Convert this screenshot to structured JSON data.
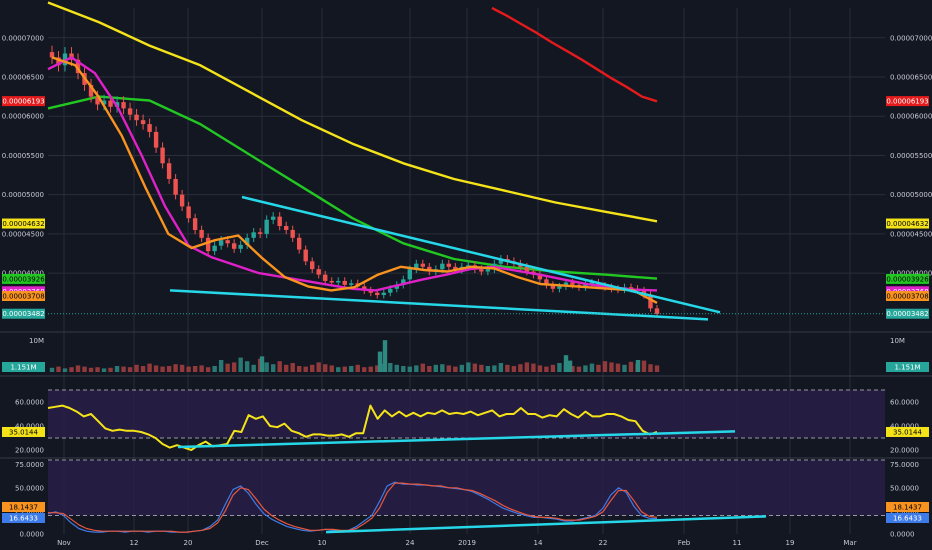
{
  "colors": {
    "background": "#131722",
    "grid": "#2a2e39",
    "candle_up": "#26a69a",
    "candle_down": "#ef5350",
    "ma_red": "#e41a1c",
    "ma_yellow": "#f5e31a",
    "ma_green": "#22c722",
    "ma_magenta": "#e020c8",
    "ma_orange": "#f7931e",
    "trendline": "#26d7e8",
    "rsi_line": "#f5e31a",
    "stoch_k": "#3d7be8",
    "stoch_d": "#e8573d",
    "panel_band": "#2b1e4a"
  },
  "chart_data": [
    {
      "type": "candlestick",
      "x_tick_labels": [
        "Nov",
        "12",
        "20",
        "Dec",
        "10",
        "24",
        "2019",
        "14",
        "22",
        "Feb",
        "11",
        "19",
        "Mar"
      ],
      "y_tick_labels": [
        "0.00007000",
        "0.00006500",
        "0.00006000",
        "0.00005500",
        "0.00005000",
        "0.00004500",
        "0.00004000"
      ],
      "ylim": [
        3.3e-05,
        7.38e-05
      ],
      "last_price": 3.482e-05,
      "price_series": [
        6.75e-05,
        6.65e-05,
        6.8e-05,
        6.72e-05,
        6.55e-05,
        6.4e-05,
        6.25e-05,
        6.15e-05,
        6.2e-05,
        6.12e-05,
        6.18e-05,
        6.1e-05,
        6.02e-05,
        5.95e-05,
        5.9e-05,
        5.8e-05,
        5.6e-05,
        5.4e-05,
        5.2e-05,
        5e-05,
        4.85e-05,
        4.7e-05,
        4.55e-05,
        4.45e-05,
        4.28e-05,
        4.35e-05,
        4.42e-05,
        4.38e-05,
        4.31e-05,
        4.36e-05,
        4.45e-05,
        4.52e-05,
        4.5e-05,
        4.68e-05,
        4.72e-05,
        4.6e-05,
        4.55e-05,
        4.45e-05,
        4.3e-05,
        4.15e-05,
        4.05e-05,
        3.98e-05,
        3.9e-05,
        3.88e-05,
        3.9e-05,
        3.85e-05,
        3.87e-05,
        3.83e-05,
        3.78e-05,
        3.75e-05,
        3.72e-05,
        3.75e-05,
        3.8e-05,
        3.85e-05,
        3.92e-05,
        4.05e-05,
        4.12e-05,
        4.08e-05,
        4.02e-05,
        4.05e-05,
        4.12e-05,
        4.08e-05,
        4.04e-05,
        4.08e-05,
        4.1e-05,
        4.05e-05,
        4.02e-05,
        4.05e-05,
        4.12e-05,
        4.18e-05,
        4.15e-05,
        4.12e-05,
        4.08e-05,
        4.02e-05,
        3.98e-05,
        3.92e-05,
        3.85e-05,
        3.8e-05,
        3.83e-05,
        3.88e-05,
        3.85e-05,
        3.82e-05,
        3.86e-05,
        3.88e-05,
        3.84e-05,
        3.82e-05,
        3.8e-05,
        3.79e-05,
        3.82e-05,
        3.8e-05,
        3.78e-05,
        3.72e-05,
        3.55e-05,
        3.48e-05
      ],
      "indicators": [
        {
          "values": [
            7.38e-05,
            7.28e-05,
            7.17e-05,
            7.06e-05,
            6.94e-05,
            6.83e-05,
            6.72e-05,
            6.6e-05,
            6.48e-05,
            6.37e-05,
            6.25e-05,
            6.19e-05
          ]
        },
        {
          "values": [
            7.45e-05,
            7.2e-05,
            6.9e-05,
            6.65e-05,
            6.3e-05,
            5.95e-05,
            5.65e-05,
            5.4e-05,
            5.2e-05,
            5.05e-05,
            4.9e-05,
            4.78e-05,
            4.66e-05
          ]
        },
        {
          "values": [
            6.1e-05,
            6.25e-05,
            6.2e-05,
            5.9e-05,
            5.5e-05,
            5.1e-05,
            4.7e-05,
            4.38e-05,
            4.18e-05,
            4.08e-05,
            4.02e-05,
            3.98e-05,
            3.93e-05
          ]
        },
        {
          "values": [
            6.6e-05,
            6.75e-05,
            6.55e-05,
            6.1e-05,
            5.5e-05,
            4.85e-05,
            4.35e-05,
            4.2e-05,
            4.1e-05,
            4e-05,
            3.95e-05,
            3.9e-05,
            3.85e-05,
            3.8e-05,
            3.78e-05,
            3.85e-05,
            3.92e-05,
            3.98e-05,
            4.05e-05,
            4.08e-05,
            4.03e-05,
            3.98e-05,
            3.92e-05,
            3.86e-05,
            3.82e-05,
            3.79e-05,
            3.78e-05
          ]
        },
        {
          "values": [
            6.75e-05,
            6.65e-05,
            6.25e-05,
            5.75e-05,
            5.1e-05,
            4.5e-05,
            4.32e-05,
            4.42e-05,
            4.48e-05,
            4.2e-05,
            3.95e-05,
            3.83e-05,
            3.78e-05,
            3.82e-05,
            3.98e-05,
            4.08e-05,
            4.04e-05,
            4.02e-05,
            4.08e-05,
            4.06e-05,
            3.95e-05,
            3.86e-05,
            3.84e-05,
            3.82e-05,
            3.8e-05,
            3.78e-05,
            3.62e-05
          ]
        }
      ],
      "trendlines": [
        {
          "from": [
            4.97e-05,
            0
          ],
          "to": [
            3.5e-05,
            1
          ]
        },
        {
          "from": [
            3.78e-05,
            0
          ],
          "to": [
            3.41e-05,
            1
          ]
        }
      ],
      "price_tags": [
        {
          "label": "0.00006193",
          "bg": "#e41a1c",
          "fg": "#ffffff"
        },
        {
          "label": "0.00004632",
          "bg": "#f5e31a",
          "fg": "#000000"
        },
        {
          "label": "0.00003926",
          "bg": "#22c722",
          "fg": "#000000"
        },
        {
          "label": "0.00003768",
          "bg": "#e020c8",
          "fg": "#ffffff"
        },
        {
          "label": "0.00003708",
          "bg": "#f7931e",
          "fg": "#000000"
        },
        {
          "label": "0.00003482",
          "bg": "#26a69a",
          "fg": "#ffffff"
        }
      ]
    },
    {
      "type": "bar",
      "y_tick_labels": [
        "10M"
      ],
      "last_volume_label": "1.151M",
      "volume_series": [
        0.7,
        0.9,
        0.6,
        0.8,
        1.1,
        0.9,
        0.7,
        0.8,
        0.6,
        0.7,
        1.0,
        0.9,
        0.8,
        1.2,
        1.0,
        1.4,
        1.1,
        0.9,
        1.0,
        1.3,
        1.2,
        0.9,
        1.0,
        1.1,
        0.8,
        1.0,
        2.0,
        1.4,
        1.6,
        2.4,
        1.8,
        1.2,
        2.2,
        1.6,
        1.3,
        1.8,
        1.2,
        1.5,
        1.0,
        0.9,
        1.2,
        1.6,
        1.3,
        1.1,
        0.8,
        0.9,
        1.0,
        1.2,
        0.8,
        0.9,
        1.1,
        1.4,
        1.5,
        1.2,
        1.0,
        0.9,
        1.1,
        1.4,
        1.0,
        1.2,
        1.3,
        1.1,
        0.9,
        1.2,
        1.6,
        1.4,
        1.2,
        1.0,
        1.1,
        1.5,
        1.2,
        1.0,
        1.3,
        1.6,
        1.4,
        1.1,
        0.9,
        1.2,
        1.5,
        1.3,
        1.0,
        0.9,
        1.1,
        1.4,
        1.2,
        1.8,
        1.6,
        1.4,
        1.2,
        1.7,
        1.4,
        1.9,
        1.3,
        1.1
      ],
      "volume_spikes": [
        2.6,
        3.4,
        5.3,
        2.8,
        1.9,
        2.0
      ]
    },
    {
      "type": "line",
      "y_tick_labels": [
        "60.0000",
        "40.0000",
        "20.0000"
      ],
      "ylim": [
        15,
        80
      ],
      "last_value_label": "35.0144",
      "values": [
        55,
        56,
        57,
        55,
        52,
        48,
        50,
        44,
        38,
        36,
        37,
        36,
        36,
        35,
        33,
        30,
        25,
        22,
        24,
        22,
        20,
        24,
        27,
        23,
        24,
        25,
        36,
        35,
        49,
        46,
        48,
        40,
        39,
        42,
        36,
        34,
        31,
        33,
        33,
        32,
        32,
        33,
        31,
        34,
        34,
        57,
        46,
        53,
        48,
        52,
        48,
        51,
        48,
        51,
        50,
        53,
        50,
        51,
        50,
        52,
        49,
        51,
        53,
        48,
        50,
        50,
        55,
        50,
        50,
        47,
        49,
        48,
        54,
        50,
        47,
        52,
        48,
        48,
        50,
        50,
        48,
        45,
        44,
        36,
        33,
        35.01
      ],
      "reference_lines": [
        70,
        30
      ],
      "trendline": {
        "from": [
          22.5,
          0
        ],
        "to": [
          35.5,
          1
        ]
      }
    },
    {
      "type": "line",
      "y_tick_labels": [
        "75.0000",
        "50.0000",
        "25.0000",
        "0.0000"
      ],
      "ylim": [
        0,
        80
      ],
      "last_values": {
        "k_label": "16.6433",
        "d_label": "18.1437"
      },
      "series": [
        {
          "values": [
            22,
            24,
            20,
            12,
            6,
            3,
            2,
            2,
            3,
            3,
            2,
            3,
            3,
            2,
            3,
            3,
            2,
            2,
            2,
            3,
            4,
            8,
            15,
            32,
            48,
            52,
            44,
            32,
            22,
            16,
            12,
            8,
            6,
            4,
            3,
            4,
            5,
            4,
            3,
            4,
            8,
            14,
            20,
            35,
            52,
            56,
            54,
            54,
            53,
            53,
            52,
            51,
            50,
            49,
            48,
            46,
            42,
            38,
            33,
            28,
            25,
            22,
            20,
            18,
            18,
            17,
            16,
            14,
            14,
            16,
            18,
            20,
            28,
            42,
            50,
            45,
            30,
            20,
            17,
            16.6
          ]
        },
        {
          "values": [
            23,
            23,
            22,
            16,
            10,
            6,
            4,
            3,
            3,
            3,
            3,
            3,
            3,
            3,
            3,
            3,
            3,
            2,
            2,
            3,
            4,
            6,
            12,
            25,
            42,
            50,
            48,
            38,
            27,
            20,
            15,
            11,
            8,
            6,
            4,
            4,
            5,
            5,
            4,
            4,
            6,
            11,
            17,
            28,
            45,
            55,
            55,
            54,
            54,
            53,
            52,
            52,
            50,
            50,
            48,
            47,
            44,
            40,
            36,
            31,
            27,
            24,
            21,
            19,
            18,
            18,
            17,
            15,
            15,
            15,
            17,
            19,
            24,
            36,
            47,
            47,
            36,
            24,
            19,
            18.1
          ]
        }
      ],
      "reference_lines": [
        80,
        20
      ],
      "trendline": {
        "from": [
          2,
          0
        ],
        "to": [
          19,
          1
        ]
      }
    }
  ]
}
